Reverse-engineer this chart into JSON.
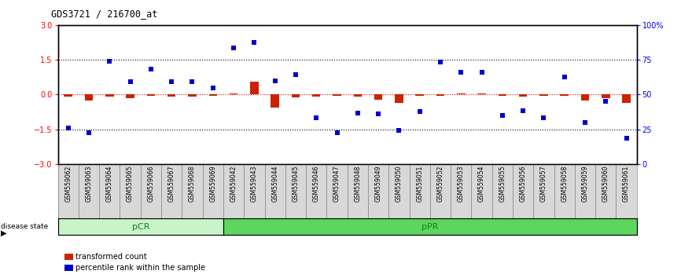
{
  "title": "GDS3721 / 216700_at",
  "samples": [
    "GSM559062",
    "GSM559063",
    "GSM559064",
    "GSM559065",
    "GSM559066",
    "GSM559067",
    "GSM559068",
    "GSM559069",
    "GSM559042",
    "GSM559043",
    "GSM559044",
    "GSM559045",
    "GSM559046",
    "GSM559047",
    "GSM559048",
    "GSM559049",
    "GSM559050",
    "GSM559051",
    "GSM559052",
    "GSM559053",
    "GSM559054",
    "GSM559055",
    "GSM559056",
    "GSM559057",
    "GSM559058",
    "GSM559059",
    "GSM559060",
    "GSM559061"
  ],
  "transformed_count": [
    -0.08,
    -0.25,
    -0.1,
    -0.15,
    -0.05,
    -0.1,
    -0.08,
    -0.05,
    0.05,
    0.55,
    -0.55,
    -0.12,
    -0.08,
    -0.05,
    -0.1,
    -0.22,
    -0.35,
    -0.05,
    -0.05,
    0.05,
    0.05,
    -0.05,
    -0.08,
    -0.05,
    -0.05,
    -0.25,
    -0.15,
    -0.35
  ],
  "percentile_rank": [
    -1.45,
    -1.65,
    1.45,
    0.55,
    1.1,
    0.55,
    0.55,
    0.3,
    2.0,
    2.25,
    0.6,
    0.85,
    -1.0,
    -1.65,
    -0.8,
    -0.85,
    -1.55,
    -0.75,
    1.4,
    0.95,
    0.95,
    -0.9,
    -0.7,
    -1.0,
    0.75,
    -1.2,
    -0.3,
    -1.9
  ],
  "pcr_count": 8,
  "ppr_count": 20,
  "pcr_color": "#c8f5c8",
  "ppr_color": "#5cd65c",
  "bar_color_red": "#CC2200",
  "bar_color_blue": "#0000CC",
  "dotted_line_y": [
    1.5,
    -1.5
  ],
  "zero_line_y": 0,
  "ylim": [
    -3,
    3
  ],
  "y_left_ticks": [
    3,
    1.5,
    0,
    -1.5,
    -3
  ],
  "y_right_ticks": [
    0,
    25,
    50,
    75,
    100
  ],
  "legend_items": [
    "transformed count",
    "percentile rank within the sample"
  ]
}
